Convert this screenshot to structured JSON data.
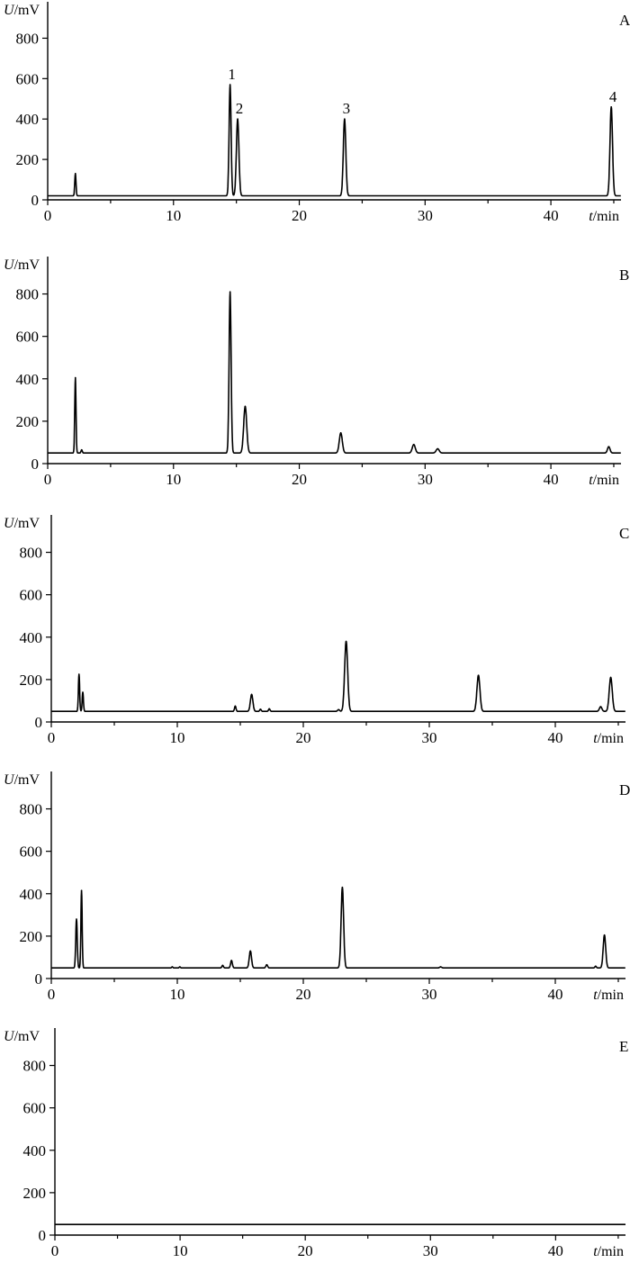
{
  "chart_data": [
    {
      "type": "line",
      "panel_label": "A",
      "ylabel": "U/mV",
      "xlabel": "t/min",
      "xlim": [
        0,
        48.5
      ],
      "ylim": [
        0,
        900
      ],
      "xticks": [
        0,
        10,
        20,
        30,
        40
      ],
      "yticks": [
        0,
        200,
        400,
        600,
        800
      ],
      "baseline": 20,
      "peaks": [
        {
          "x": 2.2,
          "y": 130,
          "w": 0.05
        },
        {
          "x": 14.5,
          "y": 570,
          "w": 0.08
        },
        {
          "x": 15.1,
          "y": 400,
          "w": 0.1
        },
        {
          "x": 23.6,
          "y": 400,
          "w": 0.1
        },
        {
          "x": 44.8,
          "y": 460,
          "w": 0.1
        }
      ],
      "peak_labels": [
        {
          "text": "1",
          "x": 14.5,
          "y": 570
        },
        {
          "text": "2",
          "x": 15.1,
          "y": 400
        },
        {
          "text": "3",
          "x": 23.6,
          "y": 400
        },
        {
          "text": "4",
          "x": 44.8,
          "y": 460
        }
      ]
    },
    {
      "type": "line",
      "panel_label": "B",
      "ylabel": "U/mV",
      "xlabel": "t/min",
      "xlim": [
        0,
        48.5
      ],
      "ylim": [
        0,
        900
      ],
      "xticks": [
        0,
        10,
        20,
        30,
        40
      ],
      "yticks": [
        0,
        200,
        400,
        600,
        800
      ],
      "baseline": 50,
      "peaks": [
        {
          "x": 2.2,
          "y": 405,
          "w": 0.05
        },
        {
          "x": 2.7,
          "y": 65,
          "w": 0.05
        },
        {
          "x": 14.5,
          "y": 810,
          "w": 0.08
        },
        {
          "x": 15.7,
          "y": 270,
          "w": 0.12
        },
        {
          "x": 23.3,
          "y": 145,
          "w": 0.12
        },
        {
          "x": 29.1,
          "y": 90,
          "w": 0.12
        },
        {
          "x": 31.0,
          "y": 70,
          "w": 0.12
        },
        {
          "x": 44.6,
          "y": 80,
          "w": 0.1
        }
      ],
      "peak_labels": []
    },
    {
      "type": "line",
      "panel_label": "C",
      "ylabel": "U/mV",
      "xlabel": "t/min",
      "xlim": [
        0,
        48.5
      ],
      "ylim": [
        0,
        900
      ],
      "xticks": [
        0,
        10,
        20,
        30,
        40
      ],
      "yticks": [
        0,
        200,
        400,
        600,
        800
      ],
      "baseline": 50,
      "peaks": [
        {
          "x": 2.2,
          "y": 225,
          "w": 0.05
        },
        {
          "x": 2.5,
          "y": 140,
          "w": 0.05
        },
        {
          "x": 14.6,
          "y": 75,
          "w": 0.06
        },
        {
          "x": 15.9,
          "y": 130,
          "w": 0.1
        },
        {
          "x": 16.6,
          "y": 60,
          "w": 0.06
        },
        {
          "x": 17.3,
          "y": 62,
          "w": 0.06
        },
        {
          "x": 22.8,
          "y": 58,
          "w": 0.08
        },
        {
          "x": 23.4,
          "y": 380,
          "w": 0.12
        },
        {
          "x": 33.9,
          "y": 220,
          "w": 0.12
        },
        {
          "x": 43.6,
          "y": 72,
          "w": 0.1
        },
        {
          "x": 44.4,
          "y": 210,
          "w": 0.12
        }
      ],
      "peak_labels": []
    },
    {
      "type": "line",
      "panel_label": "D",
      "ylabel": "U/mV",
      "xlabel": "t/min",
      "xlim": [
        0,
        48.5
      ],
      "ylim": [
        0,
        900
      ],
      "xticks": [
        0,
        10,
        20,
        30,
        40
      ],
      "yticks": [
        0,
        200,
        400,
        600,
        800
      ],
      "baseline": 50,
      "peaks": [
        {
          "x": 2.0,
          "y": 280,
          "w": 0.06
        },
        {
          "x": 2.4,
          "y": 415,
          "w": 0.05
        },
        {
          "x": 9.6,
          "y": 55,
          "w": 0.05
        },
        {
          "x": 10.2,
          "y": 55,
          "w": 0.05
        },
        {
          "x": 13.6,
          "y": 62,
          "w": 0.06
        },
        {
          "x": 14.3,
          "y": 85,
          "w": 0.07
        },
        {
          "x": 15.8,
          "y": 130,
          "w": 0.09
        },
        {
          "x": 17.1,
          "y": 65,
          "w": 0.07
        },
        {
          "x": 23.1,
          "y": 430,
          "w": 0.1
        },
        {
          "x": 30.9,
          "y": 55,
          "w": 0.08
        },
        {
          "x": 43.2,
          "y": 58,
          "w": 0.06
        },
        {
          "x": 43.9,
          "y": 205,
          "w": 0.1
        }
      ],
      "peak_labels": []
    },
    {
      "type": "line",
      "panel_label": "E",
      "ylabel": "U/mV",
      "xlabel": "t/min",
      "xlim": [
        0,
        48.5
      ],
      "ylim": [
        0,
        900
      ],
      "xticks": [
        0,
        10,
        20,
        30,
        40
      ],
      "yticks": [
        0,
        200,
        400,
        600,
        800
      ],
      "baseline": 50,
      "peaks": [],
      "peak_labels": []
    }
  ]
}
